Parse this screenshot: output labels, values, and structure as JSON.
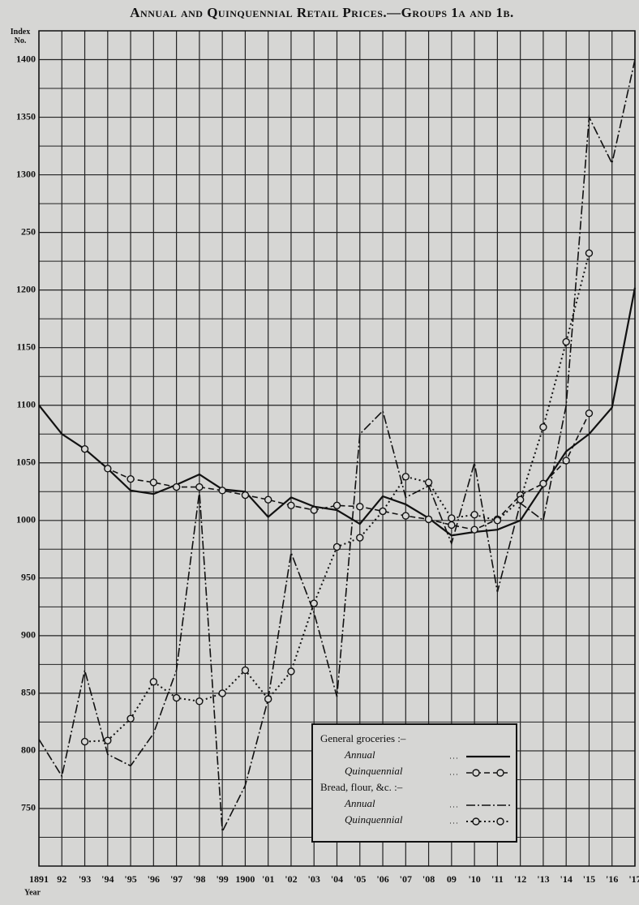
{
  "chart_data": {
    "type": "line",
    "title": "Annual and Quinquennial Retail Prices.—Groups 1a and 1b.",
    "y_label": "Index No.",
    "x_label": "Year",
    "x": [
      1891,
      1892,
      1893,
      1894,
      1895,
      1896,
      1897,
      1898,
      1899,
      1900,
      1901,
      1902,
      1903,
      1904,
      1905,
      1906,
      1907,
      1908,
      1909,
      1910,
      1911,
      1912,
      1913,
      1914,
      1915,
      1916,
      1917
    ],
    "xlim": [
      1891,
      1917
    ],
    "xticks": [
      {
        "value": 1891,
        "label": "1891"
      },
      {
        "value": 1892,
        "label": "92"
      },
      {
        "value": 1893,
        "label": "'93"
      },
      {
        "value": 1894,
        "label": "'94"
      },
      {
        "value": 1895,
        "label": "'95"
      },
      {
        "value": 1896,
        "label": "'96"
      },
      {
        "value": 1897,
        "label": "'97"
      },
      {
        "value": 1898,
        "label": "'98"
      },
      {
        "value": 1899,
        "label": "'99"
      },
      {
        "value": 1900,
        "label": "1900"
      },
      {
        "value": 1901,
        "label": "'01"
      },
      {
        "value": 1902,
        "label": "'02"
      },
      {
        "value": 1903,
        "label": "'03"
      },
      {
        "value": 1904,
        "label": "'04"
      },
      {
        "value": 1905,
        "label": "'05"
      },
      {
        "value": 1906,
        "label": "'06"
      },
      {
        "value": 1907,
        "label": "'07"
      },
      {
        "value": 1908,
        "label": "'08"
      },
      {
        "value": 1909,
        "label": "09"
      },
      {
        "value": 1910,
        "label": "'10"
      },
      {
        "value": 1911,
        "label": "'11"
      },
      {
        "value": 1912,
        "label": "'12"
      },
      {
        "value": 1913,
        "label": "'13"
      },
      {
        "value": 1914,
        "label": "'14"
      },
      {
        "value": 1915,
        "label": "'15"
      },
      {
        "value": 1916,
        "label": "'16"
      },
      {
        "value": 1917,
        "label": "'17"
      }
    ],
    "ylim": [
      700,
      1425
    ],
    "yticks": [
      750,
      800,
      850,
      900,
      950,
      1000,
      1050,
      1100,
      1150,
      1200,
      {
        "value": 1250,
        "label": "250"
      },
      1300,
      1350,
      1400
    ],
    "yminor": [
      700,
      725,
      775,
      825,
      875,
      925,
      975,
      1025,
      1075,
      1125,
      1175,
      1225,
      1275,
      1325,
      1375,
      1425
    ],
    "grid": true,
    "legend": "lower center",
    "groups": [
      {
        "name": "General groceries :–",
        "series": [
          {
            "name": "Annual",
            "color": "#111111",
            "style": "solid",
            "marker": "none",
            "values": [
              1100,
              1075,
              1062,
              1045,
              1026,
              1023,
              1031,
              1040,
              1027,
              1025,
              1003,
              1020,
              1012,
              1009,
              997,
              1021,
              1014,
              1002,
              987,
              990,
              992,
              1000,
              1030,
              1060,
              1075,
              1098,
              1202
            ]
          },
          {
            "name": "Quinquennial",
            "color": "#111111",
            "style": "dashed",
            "marker": "circle",
            "values": [
              null,
              null,
              1062,
              1045,
              1036,
              1033,
              1029,
              1029,
              1026,
              1022,
              1018,
              1013,
              1009,
              1013,
              1012,
              1008,
              1004,
              1001,
              996,
              992,
              1001,
              1022,
              1032,
              1052,
              1093,
              null,
              null
            ]
          }
        ]
      },
      {
        "name": "Bread, flour, &c. :–",
        "series": [
          {
            "name": "Annual",
            "color": "#111111",
            "style": "dashdot",
            "marker": "none",
            "values": [
              810,
              778,
              870,
              797,
              787,
              815,
              870,
              1025,
              730,
              770,
              845,
              972,
              920,
              847,
              1075,
              1095,
              1020,
              1030,
              980,
              1050,
              938,
              1015,
              1000,
              1100,
              1350,
              1310,
              1400
            ]
          },
          {
            "name": "Quinquennial",
            "color": "#111111",
            "style": "dotted",
            "marker": "circle",
            "values": [
              null,
              null,
              808,
              809,
              828,
              860,
              846,
              843,
              850,
              870,
              845,
              869,
              928,
              977,
              985,
              1008,
              1038,
              1033,
              1002,
              1005,
              1000,
              1018,
              1081,
              1155,
              1232,
              null,
              null
            ]
          }
        ]
      }
    ]
  }
}
